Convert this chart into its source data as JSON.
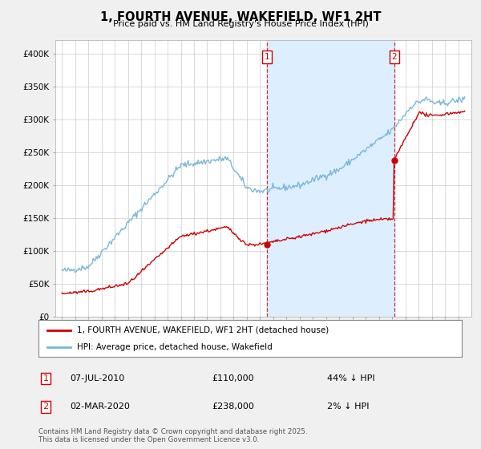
{
  "title": "1, FOURTH AVENUE, WAKEFIELD, WF1 2HT",
  "subtitle": "Price paid vs. HM Land Registry's House Price Index (HPI)",
  "ylabel_ticks": [
    "£0",
    "£50K",
    "£100K",
    "£150K",
    "£200K",
    "£250K",
    "£300K",
    "£350K",
    "£400K"
  ],
  "ytick_values": [
    0,
    50000,
    100000,
    150000,
    200000,
    250000,
    300000,
    350000,
    400000
  ],
  "ylim": [
    0,
    420000
  ],
  "hpi_color": "#7ab8d9",
  "price_color": "#cc0000",
  "shade_color": "#ddeeff",
  "background_color": "#f0f0f0",
  "plot_bg": "#ffffff",
  "legend_entries": [
    "1, FOURTH AVENUE, WAKEFIELD, WF1 2HT (detached house)",
    "HPI: Average price, detached house, Wakefield"
  ],
  "annotation1_date": "07-JUL-2010",
  "annotation1_price": "£110,000",
  "annotation1_pct": "44% ↓ HPI",
  "annotation2_date": "02-MAR-2020",
  "annotation2_price": "£238,000",
  "annotation2_pct": "2% ↓ HPI",
  "footer": "Contains HM Land Registry data © Crown copyright and database right 2025.\nThis data is licensed under the Open Government Licence v3.0.",
  "t1": 2010.52,
  "t2": 2020.17,
  "t1_price": 110000,
  "t2_price": 238000
}
